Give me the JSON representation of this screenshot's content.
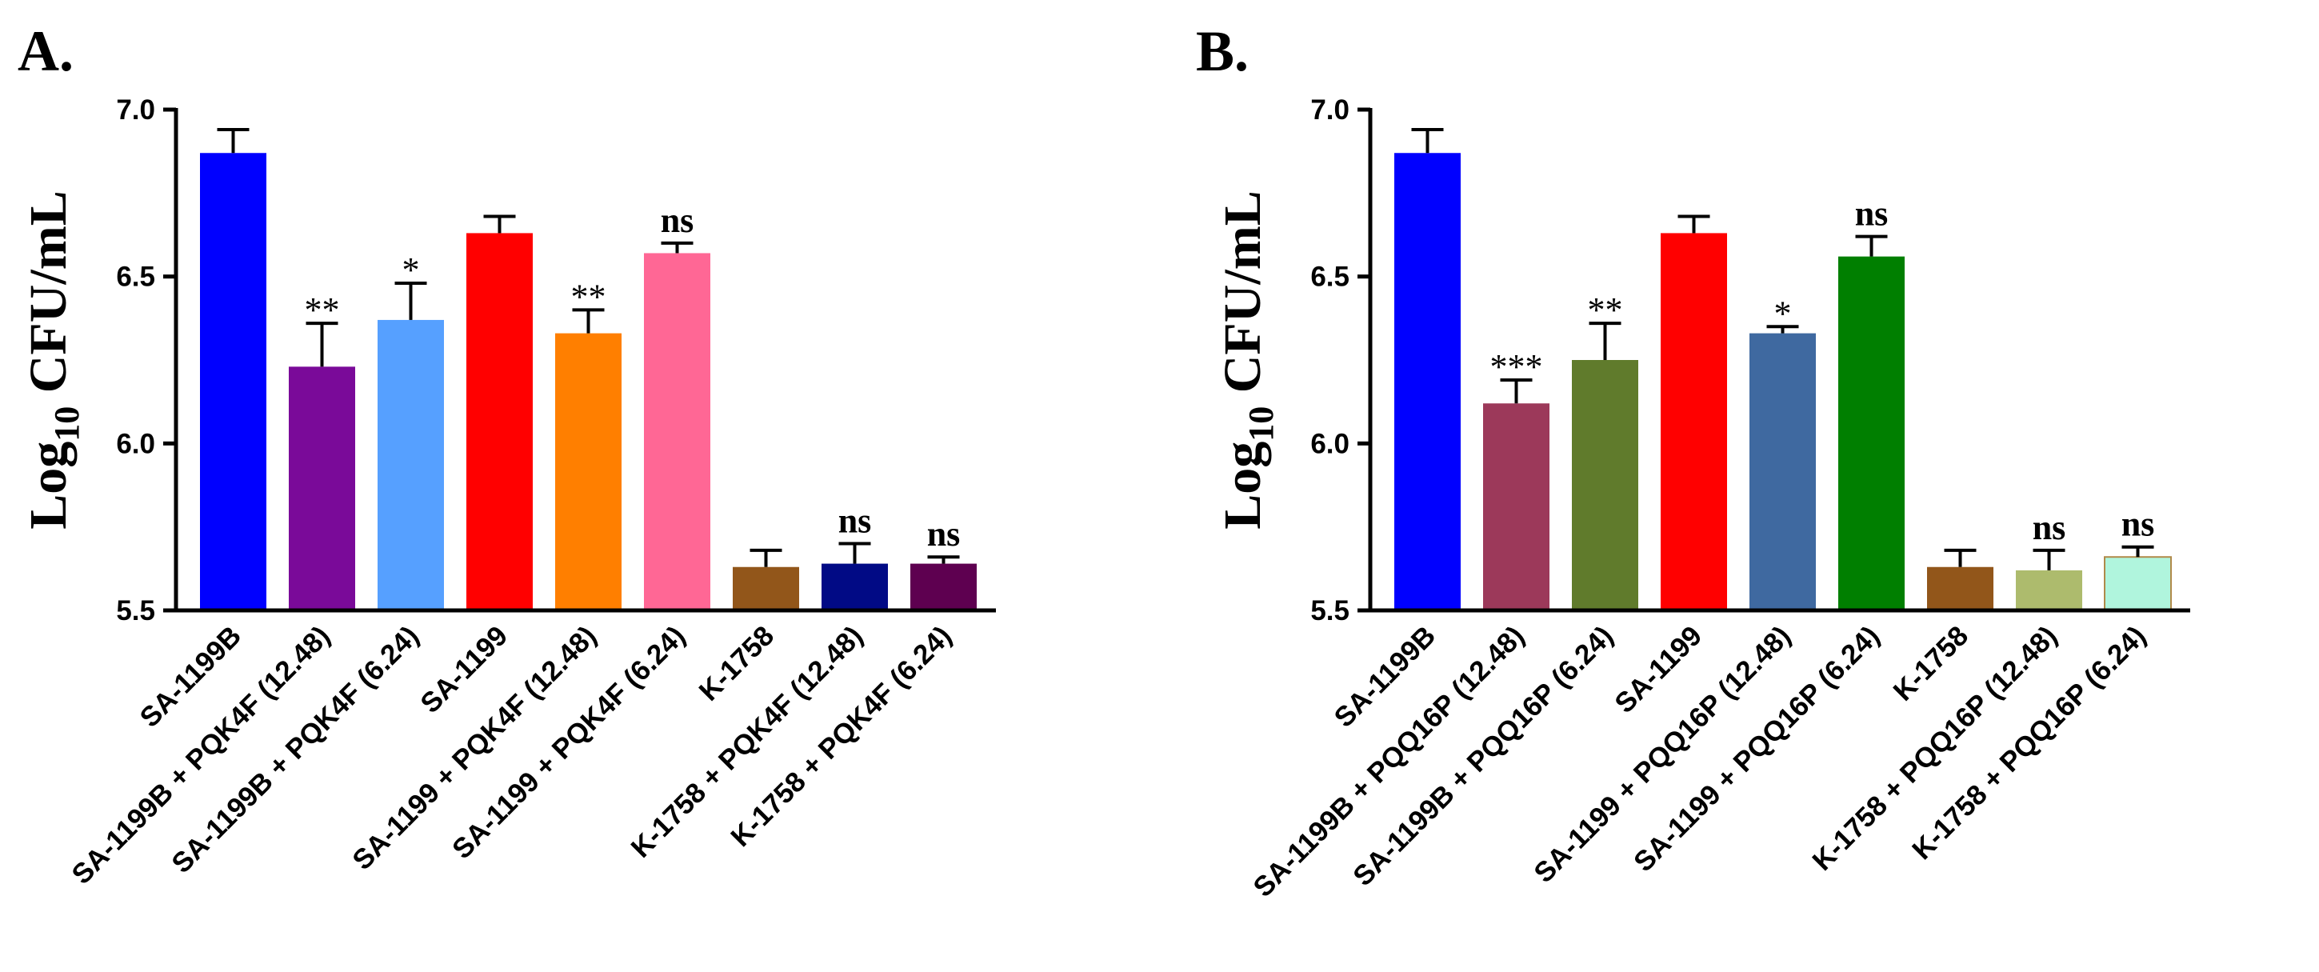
{
  "chart_data": [
    {
      "panel": "A.",
      "type": "bar",
      "ylabel_main": "Log",
      "ylabel_sub": "10",
      "ylabel_rest": " CFU/mL",
      "ylim": [
        5.5,
        7.0
      ],
      "yticks": [
        "5.5",
        "6.0",
        "6.5",
        "7.0"
      ],
      "categories": [
        "SA-1199B",
        "SA-1199B + PQK4F (12.48)",
        "SA-1199B + PQK4F (6.24)",
        "SA-1199",
        "SA-1199 + PQK4F (12.48)",
        "SA-1199 + PQK4F (6.24)",
        "K-1758",
        "K-1758 + PQK4F (12.48)",
        "K-1758 + PQK4F (6.24)"
      ],
      "values": [
        6.87,
        6.23,
        6.37,
        6.63,
        6.33,
        6.57,
        5.63,
        5.64,
        5.64
      ],
      "errors": [
        0.07,
        0.13,
        0.11,
        0.05,
        0.07,
        0.03,
        0.05,
        0.06,
        0.02
      ],
      "significance": [
        "",
        "**",
        "*",
        "",
        "**",
        "ns",
        "",
        "ns",
        "ns"
      ],
      "colors": [
        "#0000ff",
        "#7a0a99",
        "#56a0ff",
        "#ff0000",
        "#ff7f00",
        "#ff6795",
        "#92561a",
        "#010a85",
        "#5e0050"
      ]
    },
    {
      "panel": "B.",
      "type": "bar",
      "ylabel_main": "Log",
      "ylabel_sub": "10",
      "ylabel_rest": " CFU/mL",
      "ylim": [
        5.5,
        7.0
      ],
      "yticks": [
        "5.5",
        "6.0",
        "6.5",
        "7.0"
      ],
      "categories": [
        "SA-1199B",
        "SA-1199B + PQQ16P (12.48)",
        "SA-1199B + PQQ16P (6.24)",
        "SA-1199",
        "SA-1199 + PQQ16P (12.48)",
        "SA-1199 + PQQ16P (6.24)",
        "K-1758",
        "K-1758 + PQQ16P (12.48)",
        "K-1758 + PQQ16P (6.24)"
      ],
      "values": [
        6.87,
        6.12,
        6.25,
        6.63,
        6.33,
        6.56,
        5.63,
        5.62,
        5.66
      ],
      "errors": [
        0.07,
        0.07,
        0.11,
        0.05,
        0.02,
        0.06,
        0.05,
        0.06,
        0.03
      ],
      "significance": [
        "",
        "***",
        "**",
        "",
        "*",
        "ns",
        "",
        "ns",
        "ns"
      ],
      "colors": [
        "#0000ff",
        "#9c395a",
        "#607b2c",
        "#ff0000",
        "#3f69a0",
        "#007f00",
        "#92561a",
        "#adbb6d",
        "#b0f5dd"
      ]
    }
  ]
}
